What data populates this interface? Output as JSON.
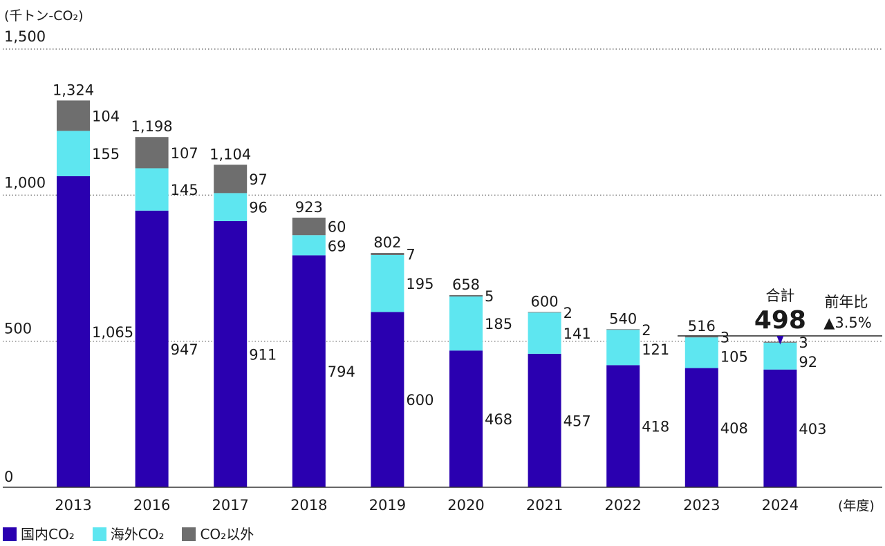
{
  "chart_data": {
    "type": "bar",
    "stacked": true,
    "y_unit_label": "(千トン-CO₂)",
    "x_unit_label": "(年度)",
    "ylim": [
      0,
      1500
    ],
    "yticks": [
      "0",
      "500",
      "1,000",
      "1,500"
    ],
    "ytick_values": [
      0,
      500,
      1000,
      1500
    ],
    "grid": "dotted horizontal at 500, 1000, 1500",
    "categories": [
      "2013",
      "2016",
      "2017",
      "2018",
      "2019",
      "2020",
      "2021",
      "2022",
      "2023",
      "2024"
    ],
    "series": [
      {
        "name": "国内CO₂",
        "color": "#2a00b0",
        "values": [
          1065,
          947,
          911,
          794,
          600,
          468,
          457,
          418,
          408,
          403
        ],
        "labels": [
          "1,065",
          "947",
          "911",
          "794",
          "600",
          "468",
          "457",
          "418",
          "408",
          "403"
        ]
      },
      {
        "name": "海外CO₂",
        "color": "#5ee6f0",
        "values": [
          155,
          145,
          96,
          69,
          195,
          185,
          141,
          121,
          105,
          92
        ],
        "labels": [
          "155",
          "145",
          "96",
          "69",
          "195",
          "185",
          "141",
          "121",
          "105",
          "92"
        ]
      },
      {
        "name": "CO₂以外",
        "color": "#6e6e6e",
        "values": [
          104,
          107,
          97,
          60,
          7,
          5,
          2,
          2,
          3,
          3
        ],
        "labels": [
          "104",
          "107",
          "97",
          "60",
          "7",
          "5",
          "2",
          "2",
          "3",
          "3"
        ]
      }
    ],
    "totals": [
      "1,324",
      "1,198",
      "1,104",
      "923",
      "802",
      "658",
      "600",
      "540",
      "516",
      null
    ],
    "highlight": {
      "category": "2024",
      "caption": "合計",
      "total": "498",
      "yoy_label": "前年比",
      "yoy_value": "▲3.5%"
    },
    "legend_position": "bottom-left"
  }
}
